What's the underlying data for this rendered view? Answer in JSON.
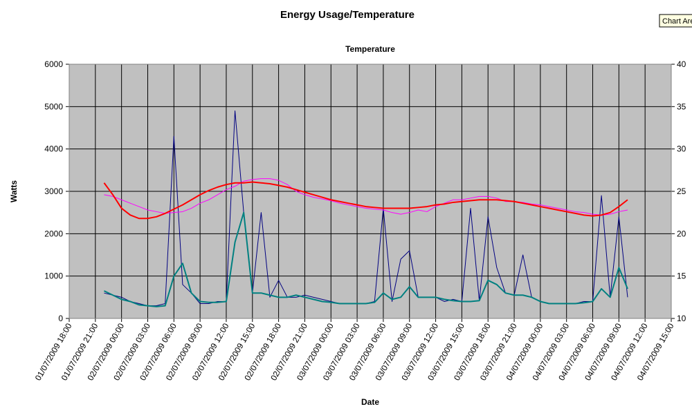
{
  "chart_data": {
    "type": "line",
    "title": "Energy Usage/Temperature",
    "subtitle": "Temperature",
    "ylabel": "Watts",
    "xlabel": "Date",
    "tooltip": "Chart Are",
    "grid": true,
    "plot_background": "#c0c0c0",
    "xlim": [
      "01/07/2009 18:00",
      "04/07/2009 15:00"
    ],
    "xticks": [
      "01/07/2009 18:00",
      "01/07/2009 21:00",
      "02/07/2009 00:00",
      "02/07/2009 03:00",
      "02/07/2009 06:00",
      "02/07/2009 09:00",
      "02/07/2009 12:00",
      "02/07/2009 15:00",
      "02/07/2009 18:00",
      "02/07/2009 21:00",
      "03/07/2009 00:00",
      "03/07/2009 03:00",
      "03/07/2009 06:00",
      "03/07/2009 09:00",
      "03/07/2009 12:00",
      "03/07/2009 15:00",
      "03/07/2009 18:00",
      "03/07/2009 21:00",
      "04/07/2009 00:00",
      "04/07/2009 03:00",
      "04/07/2009 06:00",
      "04/07/2009 09:00",
      "04/07/2009 12:00",
      "04/07/2009 15:00"
    ],
    "ylim": [
      0,
      6000
    ],
    "yticks": [
      0,
      1000,
      2000,
      3000,
      4000,
      5000,
      6000
    ],
    "y2lim": [
      10,
      40
    ],
    "y2ticks": [
      10,
      15,
      20,
      25,
      30,
      35,
      40
    ],
    "x": [
      "01/07/2009 22:00",
      "01/07/2009 23:00",
      "02/07/2009 00:00",
      "02/07/2009 01:00",
      "02/07/2009 02:00",
      "02/07/2009 03:00",
      "02/07/2009 04:00",
      "02/07/2009 05:00",
      "02/07/2009 06:00",
      "02/07/2009 07:00",
      "02/07/2009 08:00",
      "02/07/2009 09:00",
      "02/07/2009 10:00",
      "02/07/2009 11:00",
      "02/07/2009 12:00",
      "02/07/2009 13:00",
      "02/07/2009 14:00",
      "02/07/2009 15:00",
      "02/07/2009 16:00",
      "02/07/2009 17:00",
      "02/07/2009 18:00",
      "02/07/2009 19:00",
      "02/07/2009 20:00",
      "02/07/2009 21:00",
      "02/07/2009 22:00",
      "02/07/2009 23:00",
      "03/07/2009 00:00",
      "03/07/2009 01:00",
      "03/07/2009 02:00",
      "03/07/2009 03:00",
      "03/07/2009 04:00",
      "03/07/2009 05:00",
      "03/07/2009 06:00",
      "03/07/2009 07:00",
      "03/07/2009 08:00",
      "03/07/2009 09:00",
      "03/07/2009 10:00",
      "03/07/2009 11:00",
      "03/07/2009 12:00",
      "03/07/2009 13:00",
      "03/07/2009 14:00",
      "03/07/2009 15:00",
      "03/07/2009 16:00",
      "03/07/2009 17:00",
      "03/07/2009 18:00",
      "03/07/2009 19:00",
      "03/07/2009 20:00",
      "03/07/2009 21:00",
      "03/07/2009 22:00",
      "03/07/2009 23:00",
      "04/07/2009 00:00",
      "04/07/2009 01:00",
      "04/07/2009 02:00",
      "04/07/2009 03:00",
      "04/07/2009 04:00",
      "04/07/2009 05:00",
      "04/07/2009 06:00",
      "04/07/2009 07:00",
      "04/07/2009 08:00",
      "04/07/2009 09:00",
      "04/07/2009 10:00"
    ],
    "series": [
      {
        "color": "#000080",
        "width": 1,
        "values": [
          600,
          550,
          500,
          400,
          350,
          300,
          300,
          350,
          4300,
          800,
          600,
          350,
          350,
          400,
          400,
          4900,
          2500,
          600,
          2500,
          500,
          900,
          500,
          500,
          550,
          500,
          450,
          400,
          350,
          350,
          350,
          350,
          400,
          2600,
          400,
          1400,
          1600,
          500,
          500,
          500,
          400,
          450,
          400,
          2600,
          420,
          2400,
          1200,
          600,
          550,
          1500,
          500,
          400,
          350,
          350,
          350,
          350,
          400,
          400,
          2900,
          500,
          2400,
          500
        ]
      },
      {
        "color": "#008080",
        "width": 2,
        "values": [
          650,
          550,
          450,
          400,
          320,
          300,
          280,
          300,
          1000,
          1300,
          600,
          400,
          380,
          380,
          400,
          1800,
          2500,
          600,
          600,
          550,
          500,
          500,
          550,
          500,
          450,
          400,
          380,
          350,
          350,
          350,
          350,
          380,
          600,
          450,
          500,
          750,
          500,
          500,
          500,
          450,
          420,
          400,
          400,
          420,
          900,
          800,
          600,
          550,
          550,
          500,
          400,
          350,
          350,
          350,
          350,
          370,
          400,
          700,
          500,
          1200,
          700
        ]
      },
      {
        "color": "#ff00ff",
        "width": 1,
        "axis": "y2",
        "values": [
          24.6,
          24.4,
          24.0,
          23.6,
          23.2,
          22.8,
          22.6,
          22.4,
          22.5,
          22.6,
          23.0,
          23.6,
          24.0,
          24.6,
          25.2,
          25.6,
          26.2,
          26.4,
          26.5,
          26.5,
          26.3,
          25.8,
          25.0,
          24.6,
          24.3,
          24.1,
          23.9,
          23.6,
          23.4,
          23.2,
          23.0,
          22.9,
          22.8,
          22.5,
          22.3,
          22.5,
          22.8,
          22.6,
          23.2,
          23.6,
          24.0,
          24.0,
          24.2,
          24.4,
          24.4,
          24.2,
          23.8,
          23.8,
          23.7,
          23.5,
          23.4,
          23.2,
          23.0,
          22.8,
          22.6,
          22.5,
          22.3,
          22.2,
          22.3,
          22.6,
          22.8
        ]
      },
      {
        "color": "#ff0000",
        "width": 2,
        "axis": "y2",
        "values": [
          26.0,
          24.6,
          23.0,
          22.2,
          21.8,
          21.8,
          22.0,
          22.4,
          22.9,
          23.4,
          24.0,
          24.6,
          25.1,
          25.5,
          25.8,
          26.0,
          26.0,
          26.1,
          26.0,
          25.9,
          25.7,
          25.5,
          25.2,
          24.9,
          24.6,
          24.3,
          24.0,
          23.8,
          23.6,
          23.4,
          23.2,
          23.1,
          23.0,
          23.0,
          23.0,
          23.0,
          23.1,
          23.2,
          23.4,
          23.5,
          23.7,
          23.8,
          23.9,
          24.0,
          24.0,
          24.0,
          23.9,
          23.8,
          23.6,
          23.4,
          23.2,
          23.0,
          22.8,
          22.6,
          22.4,
          22.2,
          22.1,
          22.2,
          22.5,
          23.2,
          24.0
        ]
      }
    ]
  }
}
